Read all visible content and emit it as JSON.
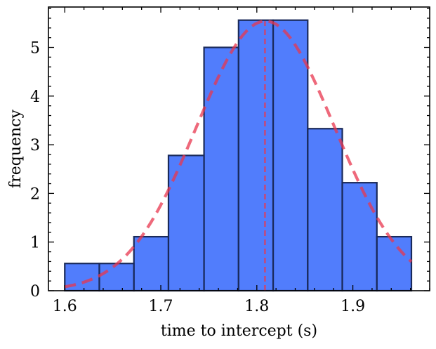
{
  "chart_data": {
    "type": "bar",
    "subtype": "histogram",
    "xlabel": "time to intercept (s)",
    "ylabel": "frequency",
    "xlim": [
      1.583,
      1.98
    ],
    "ylim": [
      0,
      5.83
    ],
    "xticks": [
      1.6,
      1.7,
      1.8,
      1.9
    ],
    "yticks": [
      0,
      1,
      2,
      3,
      4,
      5
    ],
    "grid": false,
    "bins": [
      {
        "x0": 1.6,
        "x1": 1.636,
        "value": 0.56
      },
      {
        "x0": 1.636,
        "x1": 1.672,
        "value": 0.56
      },
      {
        "x0": 1.672,
        "x1": 1.708,
        "value": 1.11
      },
      {
        "x0": 1.708,
        "x1": 1.745,
        "value": 2.78
      },
      {
        "x0": 1.745,
        "x1": 1.781,
        "value": 5.0
      },
      {
        "x0": 1.781,
        "x1": 1.817,
        "value": 5.56
      },
      {
        "x0": 1.817,
        "x1": 1.853,
        "value": 5.56
      },
      {
        "x0": 1.853,
        "x1": 1.889,
        "value": 3.33
      },
      {
        "x0": 1.889,
        "x1": 1.925,
        "value": 2.22
      },
      {
        "x0": 1.925,
        "x1": 1.961,
        "value": 1.11
      }
    ],
    "fit_curve": {
      "type": "normal",
      "mean": 1.809,
      "std": 0.072,
      "peak": 5.54
    },
    "mean_line": {
      "x": 1.8085
    },
    "colors": {
      "bar_fill": "#2B60FB",
      "bar_edge": "#1A2A5A",
      "fit_line": "#E8374F",
      "axis": "#000000"
    }
  }
}
